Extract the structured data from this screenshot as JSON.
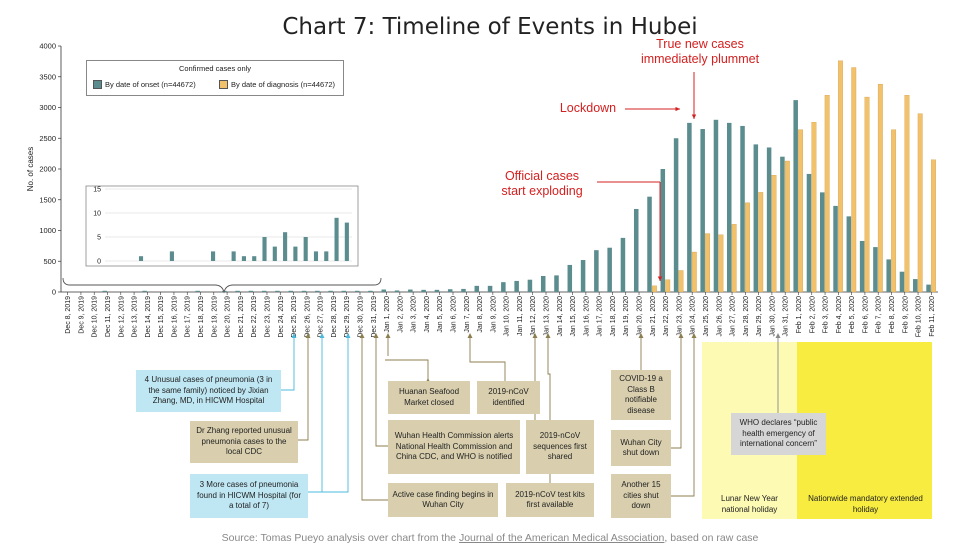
{
  "title": "Chart 7: Timeline of Events in Hubei",
  "chart_data": {
    "type": "bar",
    "ylabel": "No. of cases",
    "ylim": [
      0,
      4000
    ],
    "yticks": [
      "0",
      "500",
      "1000",
      "1500",
      "2000",
      "2500",
      "3000",
      "3500",
      "4000"
    ],
    "legend": {
      "title": "Confirmed cases only",
      "entries": [
        "By date of onset (n=44672)",
        "By date of diagnosis (n=44672)"
      ]
    },
    "colors": {
      "onset": "#5b8c8e",
      "diagnosis": "#f2c16b"
    },
    "categories": [
      "Dec 8, 2019",
      "Dec 9, 2019",
      "Dec 10, 2019",
      "Dec 11, 2019",
      "Dec 12, 2019",
      "Dec 13, 2019",
      "Dec 14, 2019",
      "Dec 15, 2019",
      "Dec 16, 2019",
      "Dec 17, 2019",
      "Dec 18, 2019",
      "Dec 19, 2019",
      "Dec 20, 2019",
      "Dec 21, 2019",
      "Dec 22, 2019",
      "Dec 23, 2019",
      "Dec 24, 2019",
      "Dec 25, 2019",
      "Dec 26, 2019",
      "Dec 27, 2019",
      "Dec 28, 2019",
      "Dec 29, 2019",
      "Dec 30, 2019",
      "Dec 31, 2019",
      "Jan 1, 2020",
      "Jan 2, 2020",
      "Jan 3, 2020",
      "Jan 4, 2020",
      "Jan 5, 2020",
      "Jan 6, 2020",
      "Jan 7, 2020",
      "Jan 8, 2020",
      "Jan 9, 2020",
      "Jan 10, 2020",
      "Jan 11, 2020",
      "Jan 12, 2020",
      "Jan 13, 2020",
      "Jan 14, 2020",
      "Jan 15, 2020",
      "Jan 16, 2020",
      "Jan 17, 2020",
      "Jan 18, 2020",
      "Jan 19, 2020",
      "Jan 20, 2020",
      "Jan 21, 2020",
      "Jan 22, 2020",
      "Jan 23, 2020",
      "Jan 24, 2020",
      "Jan 25, 2020",
      "Jan 26, 2020",
      "Jan 27, 2020",
      "Jan 28, 2020",
      "Jan 29, 2020",
      "Jan 30, 2020",
      "Jan 31, 2020",
      "Feb 1, 2020",
      "Feb 2, 2020",
      "Feb 3, 2020",
      "Feb 4, 2020",
      "Feb 5, 2020",
      "Feb 6, 2020",
      "Feb 7, 2020",
      "Feb 8, 2020",
      "Feb 9, 2020",
      "Feb 10, 2020",
      "Feb 11, 2020"
    ],
    "series": [
      {
        "name": "By date of onset",
        "values": [
          0,
          0,
          0,
          1,
          0,
          0,
          2,
          0,
          0,
          0,
          2,
          0,
          2,
          1,
          1,
          5,
          3,
          6,
          3,
          5,
          2,
          2,
          9,
          8,
          40,
          25,
          40,
          35,
          35,
          45,
          50,
          100,
          100,
          160,
          180,
          200,
          260,
          270,
          440,
          520,
          680,
          720,
          880,
          1350,
          1550,
          2000,
          2500,
          2750,
          2650,
          2800,
          2750,
          2700,
          2400,
          2350,
          2200,
          3120,
          1920,
          1620,
          1400,
          1230,
          830,
          730,
          530,
          330,
          210,
          120
        ]
      },
      {
        "name": "By date of diagnosis",
        "values": [
          0,
          0,
          0,
          0,
          0,
          0,
          0,
          0,
          0,
          0,
          0,
          0,
          0,
          0,
          0,
          0,
          0,
          0,
          0,
          0,
          0,
          0,
          0,
          0,
          0,
          0,
          0,
          0,
          0,
          0,
          0,
          0,
          0,
          0,
          0,
          0,
          0,
          0,
          0,
          0,
          0,
          0,
          0,
          0,
          100,
          200,
          350,
          650,
          950,
          930,
          1100,
          1450,
          1620,
          1900,
          2130,
          2640,
          2760,
          3200,
          3760,
          3650,
          3170,
          3380,
          2640,
          3200,
          2900,
          2150
        ]
      }
    ],
    "inset": {
      "yticks": [
        "0",
        "5",
        "10",
        "15"
      ],
      "ylim": [
        0,
        15
      ]
    }
  },
  "annotations": {
    "true_new": [
      "True new cases",
      "immediately plummet"
    ],
    "lockdown": "Lockdown",
    "official": [
      "Official cases",
      "start exploding"
    ]
  },
  "events": {
    "e1": "4 Unusual cases of pneumonia (3 in the same family) noticed by Jixian Zhang, MD, in HICWM Hospital",
    "e2": "Dr Zhang reported unusual pneumonia cases to the local CDC",
    "e3": "3 More cases of pneumonia found in HICWM Hospital (for a total of 7)",
    "e4": "Huanan Seafood Market closed",
    "e5": "2019-nCoV identified",
    "e6": "Wuhan Health Commission alerts National Health Commission and China CDC, and WHO is notified",
    "e7": "2019-nCoV sequences first shared",
    "e8": "Active case finding begins in Wuhan City",
    "e9": "2019-nCoV test kits first available",
    "e10": "COVID-19 a Class B notifiable disease",
    "e11": "Wuhan City shut down",
    "e12": "Another 15 cities shut down",
    "e13": "WHO declares “public health emergency of international concern”"
  },
  "zones": {
    "lunar": "Lunar New Year national holiday",
    "mandatory": "Nationwide mandatory extended holiday"
  },
  "source": {
    "prefix": "Source: Tomas Pueyo analysis over chart from the ",
    "link": "Journal of the American Medical Association",
    "suffix": ", based on raw case"
  }
}
